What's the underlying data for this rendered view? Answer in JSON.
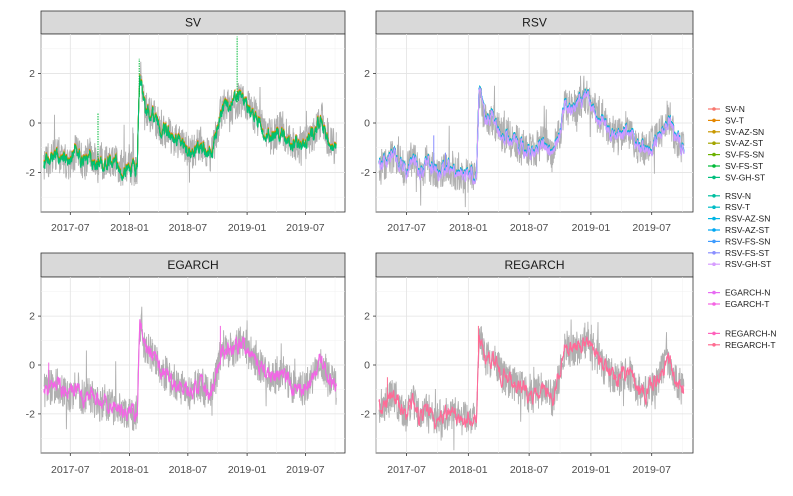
{
  "figure": {
    "background": "#ffffff"
  },
  "chart_data": [
    {
      "panel": "SV",
      "type": "line",
      "title": "SV",
      "xlabel": "",
      "ylabel": "",
      "x_ticks": [
        "2017-07",
        "2018-01",
        "2018-07",
        "2019-01",
        "2019-07"
      ],
      "y_ticks": [
        -2,
        0,
        2
      ],
      "xlim": [
        "2017-04-01",
        "2019-11-01"
      ],
      "ylim": [
        -3.6,
        3.6
      ],
      "grid": true,
      "reference_series": {
        "color": "#b0b0b0"
      },
      "series": [
        {
          "name": "SV-N",
          "color": "#F8766D"
        },
        {
          "name": "SV-T",
          "color": "#E58700"
        },
        {
          "name": "SV-AZ-SN",
          "color": "#C99800"
        },
        {
          "name": "SV-AZ-ST",
          "color": "#A3A500"
        },
        {
          "name": "SV-FS-SN",
          "color": "#6BB100"
        },
        {
          "name": "SV-FS-ST",
          "color": "#00BA38"
        },
        {
          "name": "SV-GH-ST",
          "color": "#00BF7D"
        }
      ],
      "anchors": [
        [
          "2017-04-10",
          -1.6
        ],
        [
          "2017-05-01",
          -1.5
        ],
        [
          "2017-05-20",
          -1.2
        ],
        [
          "2017-06-10",
          -1.4
        ],
        [
          "2017-07-01",
          -1.7
        ],
        [
          "2017-07-20",
          -1.0
        ],
        [
          "2017-08-10",
          -1.7
        ],
        [
          "2017-09-01",
          -1.2
        ],
        [
          "2017-09-25",
          -1.7
        ],
        [
          "2017-10-15",
          -1.5
        ],
        [
          "2017-11-10",
          -1.4
        ],
        [
          "2017-12-05",
          -1.8
        ],
        [
          "2018-01-25",
          -1.8
        ],
        [
          "2018-02-02",
          2.0
        ],
        [
          "2018-02-20",
          0.5
        ],
        [
          "2018-03-15",
          0.3
        ],
        [
          "2018-04-10",
          -0.2
        ],
        [
          "2018-05-10",
          -0.6
        ],
        [
          "2018-06-10",
          -0.9
        ],
        [
          "2018-07-10",
          -1.2
        ],
        [
          "2018-08-10",
          -0.8
        ],
        [
          "2018-09-10",
          -1.4
        ],
        [
          "2018-10-01",
          -0.2
        ],
        [
          "2018-10-15",
          0.6
        ],
        [
          "2018-11-15",
          0.7
        ],
        [
          "2018-12-20",
          1.0
        ],
        [
          "2019-01-20",
          0.4
        ],
        [
          "2019-02-20",
          -0.3
        ],
        [
          "2019-03-20",
          -0.6
        ],
        [
          "2019-04-20",
          -0.2
        ],
        [
          "2019-05-20",
          -0.9
        ],
        [
          "2019-06-20",
          -1.0
        ],
        [
          "2019-07-20",
          -0.6
        ],
        [
          "2019-08-20",
          0.2
        ],
        [
          "2019-09-10",
          -0.7
        ],
        [
          "2019-10-05",
          -1.0
        ]
      ],
      "highlights": [
        [
          "2018-12-01",
          3.5
        ],
        [
          "2017-09-25",
          0.4
        ],
        [
          "2018-01-31",
          2.6
        ]
      ]
    },
    {
      "panel": "RSV",
      "type": "line",
      "title": "RSV",
      "xlabel": "",
      "ylabel": "",
      "x_ticks": [
        "2017-07",
        "2018-01",
        "2018-07",
        "2019-01",
        "2019-07"
      ],
      "y_ticks": [
        -2,
        0,
        2
      ],
      "xlim": [
        "2017-04-01",
        "2019-11-01"
      ],
      "ylim": [
        -3.6,
        3.6
      ],
      "grid": true,
      "reference_series": {
        "color": "#b0b0b0"
      },
      "series": [
        {
          "name": "RSV-N",
          "color": "#00BFA0"
        },
        {
          "name": "RSV-T",
          "color": "#00BCC6"
        },
        {
          "name": "RSV-AZ-SN",
          "color": "#00B5E5"
        },
        {
          "name": "RSV-AZ-ST",
          "color": "#00A7F2"
        },
        {
          "name": "RSV-FS-SN",
          "color": "#3E9BFE"
        },
        {
          "name": "RSV-FS-ST",
          "color": "#8A8FFF"
        },
        {
          "name": "RSV-GH-ST",
          "color": "#D79DFF"
        }
      ],
      "anchors": [
        [
          "2017-04-10",
          -1.8
        ],
        [
          "2017-05-01",
          -1.7
        ],
        [
          "2017-05-20",
          -1.3
        ],
        [
          "2017-06-10",
          -1.6
        ],
        [
          "2017-07-01",
          -2.0
        ],
        [
          "2017-07-20",
          -1.3
        ],
        [
          "2017-08-10",
          -2.1
        ],
        [
          "2017-09-01",
          -1.6
        ],
        [
          "2017-09-25",
          -2.0
        ],
        [
          "2017-10-15",
          -2.0
        ],
        [
          "2017-11-10",
          -1.8
        ],
        [
          "2017-12-05",
          -2.2
        ],
        [
          "2018-01-25",
          -2.0
        ],
        [
          "2018-02-02",
          1.3
        ],
        [
          "2018-02-20",
          0.2
        ],
        [
          "2018-03-15",
          0.1
        ],
        [
          "2018-04-10",
          -0.4
        ],
        [
          "2018-05-10",
          -0.7
        ],
        [
          "2018-06-10",
          -1.0
        ],
        [
          "2018-07-10",
          -1.2
        ],
        [
          "2018-08-10",
          -0.8
        ],
        [
          "2018-09-10",
          -1.3
        ],
        [
          "2018-10-01",
          -0.3
        ],
        [
          "2018-10-15",
          0.6
        ],
        [
          "2018-11-15",
          0.6
        ],
        [
          "2018-12-20",
          1.1
        ],
        [
          "2019-01-20",
          0.3
        ],
        [
          "2019-02-20",
          -0.2
        ],
        [
          "2019-03-20",
          -0.6
        ],
        [
          "2019-04-20",
          -0.2
        ],
        [
          "2019-05-20",
          -0.9
        ],
        [
          "2019-06-20",
          -1.0
        ],
        [
          "2019-07-20",
          -0.6
        ],
        [
          "2019-08-20",
          0.3
        ],
        [
          "2019-09-10",
          -0.6
        ],
        [
          "2019-10-05",
          -1.0
        ]
      ],
      "highlights": [
        [
          "2017-09-20",
          -0.5
        ],
        [
          "2017-10-25",
          -1.2
        ]
      ]
    },
    {
      "panel": "EGARCH",
      "type": "line",
      "title": "EGARCH",
      "xlabel": "",
      "ylabel": "",
      "x_ticks": [
        "2017-07",
        "2018-01",
        "2018-07",
        "2019-01",
        "2019-07"
      ],
      "y_ticks": [
        -2,
        0,
        2
      ],
      "xlim": [
        "2017-04-01",
        "2019-11-01"
      ],
      "ylim": [
        -3.6,
        3.6
      ],
      "grid": true,
      "reference_series": {
        "color": "#b0b0b0"
      },
      "series": [
        {
          "name": "EGARCH-N",
          "color": "#E76BF3"
        },
        {
          "name": "EGARCH-T",
          "color": "#F564E3"
        }
      ],
      "anchors": [
        [
          "2017-04-10",
          -1.0
        ],
        [
          "2017-05-01",
          -0.9
        ],
        [
          "2017-05-20",
          -0.8
        ],
        [
          "2017-06-10",
          -1.0
        ],
        [
          "2017-07-01",
          -1.2
        ],
        [
          "2017-07-20",
          -0.9
        ],
        [
          "2017-08-10",
          -1.4
        ],
        [
          "2017-09-01",
          -1.2
        ],
        [
          "2017-09-25",
          -1.6
        ],
        [
          "2017-10-15",
          -1.5
        ],
        [
          "2017-11-10",
          -1.7
        ],
        [
          "2017-12-05",
          -1.9
        ],
        [
          "2018-01-25",
          -2.0
        ],
        [
          "2018-02-02",
          1.7
        ],
        [
          "2018-02-20",
          0.6
        ],
        [
          "2018-03-15",
          0.4
        ],
        [
          "2018-04-10",
          -0.2
        ],
        [
          "2018-05-10",
          -0.6
        ],
        [
          "2018-06-10",
          -0.9
        ],
        [
          "2018-07-10",
          -1.1
        ],
        [
          "2018-08-10",
          -0.8
        ],
        [
          "2018-09-10",
          -1.3
        ],
        [
          "2018-10-01",
          -0.2
        ],
        [
          "2018-10-15",
          0.7
        ],
        [
          "2018-11-15",
          0.6
        ],
        [
          "2018-12-20",
          0.9
        ],
        [
          "2019-01-20",
          0.3
        ],
        [
          "2019-02-20",
          -0.2
        ],
        [
          "2019-03-20",
          -0.6
        ],
        [
          "2019-04-20",
          -0.3
        ],
        [
          "2019-05-20",
          -0.9
        ],
        [
          "2019-06-20",
          -1.0
        ],
        [
          "2019-07-20",
          -0.6
        ],
        [
          "2019-08-20",
          0.2
        ],
        [
          "2019-09-10",
          -0.6
        ],
        [
          "2019-10-05",
          -0.9
        ]
      ],
      "highlights": [
        [
          "2017-04-25",
          0.1
        ],
        [
          "2018-10-10",
          1.6
        ]
      ]
    },
    {
      "panel": "REGARCH",
      "type": "line",
      "title": "REGARCH",
      "xlabel": "",
      "ylabel": "",
      "x_ticks": [
        "2017-07",
        "2018-01",
        "2018-07",
        "2019-01",
        "2019-07"
      ],
      "y_ticks": [
        -2,
        0,
        2
      ],
      "xlim": [
        "2017-04-01",
        "2019-11-01"
      ],
      "ylim": [
        -3.6,
        3.6
      ],
      "grid": true,
      "reference_series": {
        "color": "#b0b0b0"
      },
      "series": [
        {
          "name": "REGARCH-N",
          "color": "#FF62BC"
        },
        {
          "name": "REGARCH-T",
          "color": "#FF6C91"
        }
      ],
      "anchors": [
        [
          "2017-04-10",
          -1.7
        ],
        [
          "2017-05-01",
          -1.6
        ],
        [
          "2017-05-20",
          -1.2
        ],
        [
          "2017-06-10",
          -1.6
        ],
        [
          "2017-07-01",
          -2.1
        ],
        [
          "2017-07-20",
          -1.4
        ],
        [
          "2017-08-10",
          -2.2
        ],
        [
          "2017-09-01",
          -1.8
        ],
        [
          "2017-09-25",
          -2.3
        ],
        [
          "2017-10-15",
          -2.1
        ],
        [
          "2017-11-10",
          -1.9
        ],
        [
          "2017-12-05",
          -2.2
        ],
        [
          "2018-01-25",
          -2.1
        ],
        [
          "2018-02-02",
          1.4
        ],
        [
          "2018-02-20",
          0.3
        ],
        [
          "2018-03-15",
          0.2
        ],
        [
          "2018-04-10",
          -0.4
        ],
        [
          "2018-05-10",
          -0.7
        ],
        [
          "2018-06-10",
          -1.0
        ],
        [
          "2018-07-10",
          -1.3
        ],
        [
          "2018-08-10",
          -0.9
        ],
        [
          "2018-09-10",
          -1.4
        ],
        [
          "2018-10-01",
          -0.3
        ],
        [
          "2018-10-15",
          0.7
        ],
        [
          "2018-11-15",
          0.6
        ],
        [
          "2018-12-20",
          1.1
        ],
        [
          "2019-01-20",
          0.3
        ],
        [
          "2019-02-20",
          -0.3
        ],
        [
          "2019-03-20",
          -0.7
        ],
        [
          "2019-04-20",
          -0.2
        ],
        [
          "2019-05-20",
          -1.0
        ],
        [
          "2019-06-20",
          -1.1
        ],
        [
          "2019-07-20",
          -0.6
        ],
        [
          "2019-08-20",
          0.3
        ],
        [
          "2019-09-10",
          -0.6
        ],
        [
          "2019-10-05",
          -1.0
        ]
      ],
      "highlights": [
        [
          "2017-05-05",
          -0.5
        ],
        [
          "2018-01-31",
          1.6
        ]
      ]
    }
  ]
}
